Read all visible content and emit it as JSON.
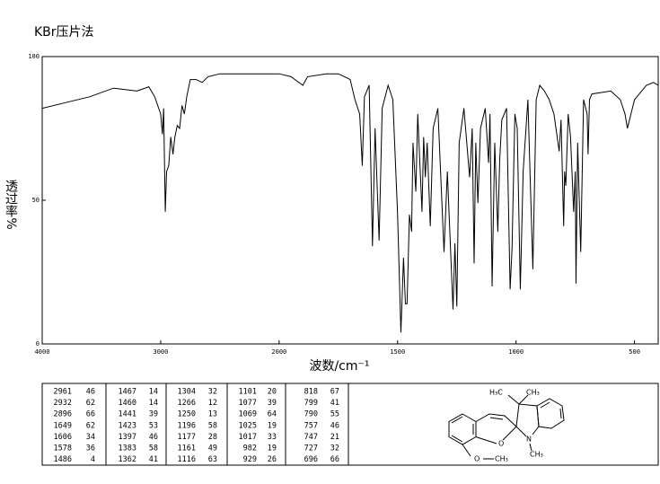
{
  "chart_data": {
    "type": "line",
    "title": "KBr压片法",
    "ylabel": "透过率%",
    "xlabel": "波数/cm⁻¹",
    "x": [
      4000,
      3800,
      3600,
      3400,
      3300,
      3200,
      3100,
      3050,
      3000,
      2985,
      2975,
      2961,
      2950,
      2932,
      2915,
      2896,
      2880,
      2860,
      2840,
      2820,
      2800,
      2780,
      2750,
      2700,
      2650,
      2600,
      2500,
      2400,
      2300,
      2200,
      2100,
      2000,
      1950,
      1900,
      1880,
      1800,
      1750,
      1700,
      1680,
      1660,
      1649,
      1640,
      1620,
      1606,
      1595,
      1578,
      1565,
      1540,
      1520,
      1500,
      1486,
      1475,
      1467,
      1460,
      1450,
      1441,
      1435,
      1423,
      1415,
      1397,
      1390,
      1383,
      1375,
      1362,
      1350,
      1330,
      1304,
      1290,
      1266,
      1258,
      1250,
      1240,
      1220,
      1196,
      1185,
      1177,
      1170,
      1161,
      1150,
      1130,
      1116,
      1110,
      1101,
      1090,
      1077,
      1069,
      1060,
      1040,
      1025,
      1017,
      1005,
      995,
      982,
      970,
      950,
      929,
      915,
      900,
      880,
      860,
      840,
      818,
      810,
      799,
      795,
      790,
      780,
      770,
      757,
      750,
      747,
      740,
      727,
      715,
      700,
      696,
      690,
      680,
      600,
      560,
      540,
      530,
      515,
      500,
      480,
      450,
      420,
      400
    ],
    "values": [
      82,
      84,
      86,
      89,
      88.5,
      88,
      89.5,
      86,
      80,
      73,
      82,
      46,
      60,
      62,
      72,
      66,
      72,
      76,
      75,
      83,
      80,
      86,
      92,
      92,
      91,
      93,
      94,
      94,
      94,
      94,
      94,
      94,
      93,
      90,
      93,
      94,
      94,
      92,
      85,
      80,
      62,
      86,
      90,
      34,
      75,
      36,
      82,
      90,
      85,
      45,
      4,
      30,
      14,
      14,
      45,
      39,
      70,
      53,
      80,
      46,
      72,
      58,
      70,
      41,
      75,
      82,
      32,
      60,
      12,
      35,
      13,
      70,
      82,
      58,
      75,
      28,
      70,
      49,
      75,
      82,
      63,
      80,
      20,
      70,
      39,
      64,
      78,
      82,
      19,
      33,
      80,
      75,
      19,
      60,
      85,
      26,
      85,
      90,
      88,
      85,
      80,
      67,
      78,
      41,
      60,
      55,
      80,
      72,
      46,
      60,
      21,
      70,
      32,
      85,
      80,
      66,
      85,
      87,
      88,
      85,
      80,
      75,
      80,
      85,
      87,
      90,
      91,
      90
    ],
    "color": "#000000",
    "xlim": [
      4000,
      400
    ],
    "xscale": {
      "type": "piecewise",
      "break": 2000,
      "ratio": 2
    },
    "xticks": [
      4000,
      3000,
      2000,
      1500,
      1000,
      500
    ],
    "ylim": [
      0,
      100
    ],
    "yticks": [
      0,
      50,
      100
    ]
  },
  "peak_table": [
    [
      [
        2961,
        46
      ],
      [
        2932,
        62
      ],
      [
        2896,
        66
      ],
      [
        1649,
        62
      ],
      [
        1606,
        34
      ],
      [
        1578,
        36
      ],
      [
        1486,
        4
      ]
    ],
    [
      [
        1467,
        14
      ],
      [
        1460,
        14
      ],
      [
        1441,
        39
      ],
      [
        1423,
        53
      ],
      [
        1397,
        46
      ],
      [
        1383,
        58
      ],
      [
        1362,
        41
      ]
    ],
    [
      [
        1304,
        32
      ],
      [
        1266,
        12
      ],
      [
        1250,
        13
      ],
      [
        1196,
        58
      ],
      [
        1177,
        28
      ],
      [
        1161,
        49
      ],
      [
        1116,
        63
      ]
    ],
    [
      [
        1101,
        20
      ],
      [
        1077,
        39
      ],
      [
        1069,
        64
      ],
      [
        1025,
        19
      ],
      [
        1017,
        33
      ],
      [
        982,
        19
      ],
      [
        929,
        26
      ]
    ],
    [
      [
        818,
        67
      ],
      [
        799,
        41
      ],
      [
        790,
        55
      ],
      [
        757,
        46
      ],
      [
        747,
        21
      ],
      [
        727,
        32
      ],
      [
        696,
        66
      ]
    ]
  ],
  "structure": {
    "labels": [
      "H₃C",
      "CH₃",
      "O",
      "N",
      "CH₃",
      "O",
      "CH₃"
    ]
  }
}
